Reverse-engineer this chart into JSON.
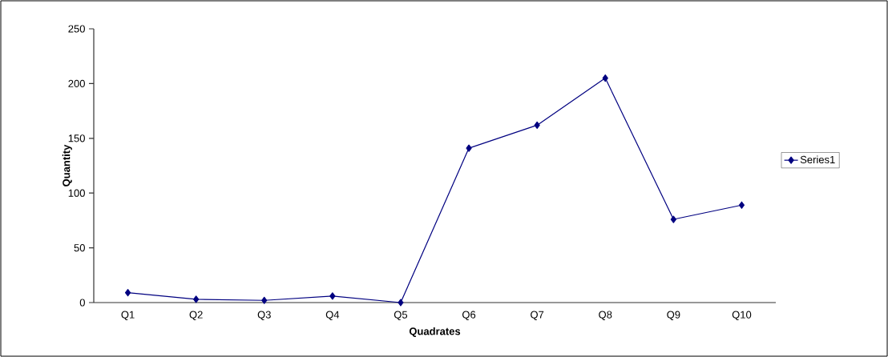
{
  "chart_data": {
    "type": "line",
    "xlabel": "Quadrates",
    "ylabel": "Quantity",
    "categories": [
      "Q1",
      "Q2",
      "Q3",
      "Q4",
      "Q5",
      "Q6",
      "Q7",
      "Q8",
      "Q9",
      "Q10"
    ],
    "series": [
      {
        "name": "Series1",
        "color": "#000080",
        "values": [
          9,
          3,
          2,
          6,
          0,
          141,
          162,
          205,
          76,
          89
        ]
      }
    ],
    "ylim": [
      0,
      250
    ],
    "yticks": [
      0,
      50,
      100,
      150,
      200,
      250
    ],
    "marker": "diamond",
    "line_style": "solid",
    "legend": "right"
  }
}
